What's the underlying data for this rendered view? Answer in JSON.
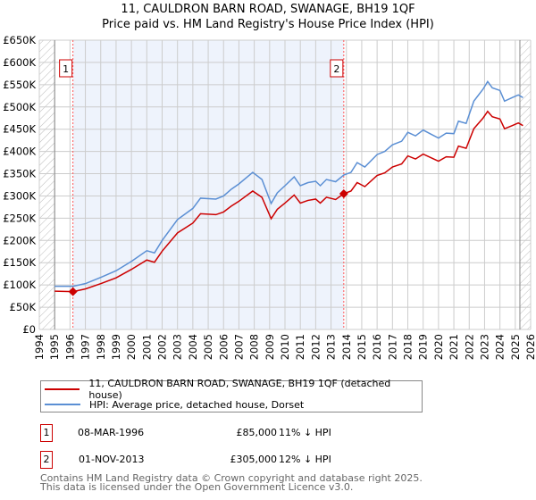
{
  "title": "11, CAULDRON BARN ROAD, SWANAGE, BH19 1QF",
  "subtitle": "Price paid vs. HM Land Registry's House Price Index (HPI)",
  "chart_data": {
    "type": "line",
    "xlim": [
      1994,
      2026
    ],
    "ylim": [
      0,
      650000
    ],
    "x_ticks": [
      "1994",
      "1995",
      "1996",
      "1997",
      "1998",
      "1999",
      "2000",
      "2001",
      "2002",
      "2003",
      "2004",
      "2005",
      "2006",
      "2007",
      "2008",
      "2009",
      "2010",
      "2011",
      "2012",
      "2013",
      "2014",
      "2015",
      "2016",
      "2017",
      "2018",
      "2019",
      "2020",
      "2021",
      "2022",
      "2023",
      "2024",
      "2025",
      "2026"
    ],
    "y_ticks": [
      "£0",
      "£50K",
      "£100K",
      "£150K",
      "£200K",
      "£250K",
      "£300K",
      "£350K",
      "£400K",
      "£450K",
      "£500K",
      "£550K",
      "£600K",
      "£650K"
    ],
    "shaded_range": [
      1996.19,
      2013.83
    ],
    "series": [
      {
        "name": "11, CAULDRON BARN ROAD, SWANAGE, BH19 1QF (detached house)",
        "color": "#cc0000",
        "x": [
          1995,
          1996.2,
          1997,
          1998,
          1999,
          2000,
          2001,
          2001.5,
          2002,
          2003,
          2004,
          2004.5,
          2005.5,
          2006,
          2006.5,
          2007,
          2007.9,
          2008.5,
          2009.1,
          2009.5,
          2010,
          2010.6,
          2011,
          2011.5,
          2012,
          2012.3,
          2012.7,
          2013.3,
          2013.83,
          2014.3,
          2014.7,
          2015.2,
          2016,
          2016.5,
          2017,
          2017.6,
          2018,
          2018.5,
          2019,
          2019.5,
          2020,
          2020.5,
          2021,
          2021.3,
          2021.8,
          2022.3,
          2022.9,
          2023.2,
          2023.5,
          2024,
          2024.3,
          2024.8,
          2025.2,
          2025.5
        ],
        "y": [
          86000,
          85000,
          91000,
          103000,
          116000,
          135000,
          156000,
          151000,
          176000,
          217000,
          239000,
          260000,
          258000,
          264000,
          277000,
          288000,
          311000,
          297000,
          249000,
          270000,
          284000,
          302000,
          284000,
          290000,
          293000,
          284000,
          297000,
          292000,
          305000,
          311000,
          330000,
          321000,
          346000,
          352000,
          365000,
          372000,
          390000,
          383000,
          394000,
          386000,
          378000,
          388000,
          387000,
          412000,
          407000,
          451000,
          475000,
          490000,
          478000,
          473000,
          451000,
          458000,
          464000,
          458000
        ]
      },
      {
        "name": "HPI: Average price, detached house, Dorset",
        "color": "#5b8fd4",
        "x": [
          1995,
          1996.2,
          1997,
          1998,
          1999,
          2000,
          2001,
          2001.5,
          2002,
          2003,
          2004,
          2004.5,
          2005.5,
          2006,
          2006.5,
          2007,
          2007.9,
          2008.5,
          2009.1,
          2009.5,
          2010,
          2010.6,
          2011,
          2011.5,
          2012,
          2012.3,
          2012.7,
          2013.3,
          2013.83,
          2014.3,
          2014.7,
          2015.2,
          2016,
          2016.5,
          2017,
          2017.6,
          2018,
          2018.5,
          2019,
          2019.5,
          2020,
          2020.5,
          2021,
          2021.3,
          2021.8,
          2022.3,
          2022.9,
          2023.2,
          2023.5,
          2024,
          2024.3,
          2024.8,
          2025.2,
          2025.5
        ],
        "y": [
          97000,
          97000,
          103000,
          117000,
          132000,
          153000,
          177000,
          172000,
          200000,
          247000,
          272000,
          295000,
          293000,
          300000,
          315000,
          327000,
          353000,
          337000,
          283000,
          307000,
          323000,
          343000,
          323000,
          330000,
          333000,
          323000,
          337000,
          332000,
          347000,
          353000,
          375000,
          365000,
          393000,
          400000,
          415000,
          423000,
          443000,
          435000,
          448000,
          439000,
          430000,
          441000,
          440000,
          468000,
          463000,
          513000,
          540000,
          557000,
          543000,
          537000,
          513000,
          521000,
          527000,
          521000
        ]
      }
    ],
    "sales": [
      {
        "label": "1",
        "x": 1996.19,
        "y": 85000
      },
      {
        "label": "2",
        "x": 2013.83,
        "y": 305000
      }
    ]
  },
  "legend": {
    "price": "11, CAULDRON BARN ROAD, SWANAGE, BH19 1QF (detached house)",
    "hpi": "HPI: Average price, detached house, Dorset"
  },
  "transactions": [
    {
      "num": "1",
      "date": "08-MAR-1996",
      "price": "£85,000",
      "delta": "11% ↓ HPI"
    },
    {
      "num": "2",
      "date": "01-NOV-2013",
      "price": "£305,000",
      "delta": "12% ↓ HPI"
    }
  ],
  "footer": {
    "line1": "Contains HM Land Registry data © Crown copyright and database right 2025.",
    "line2": "This data is licensed under the Open Government Licence v3.0."
  }
}
